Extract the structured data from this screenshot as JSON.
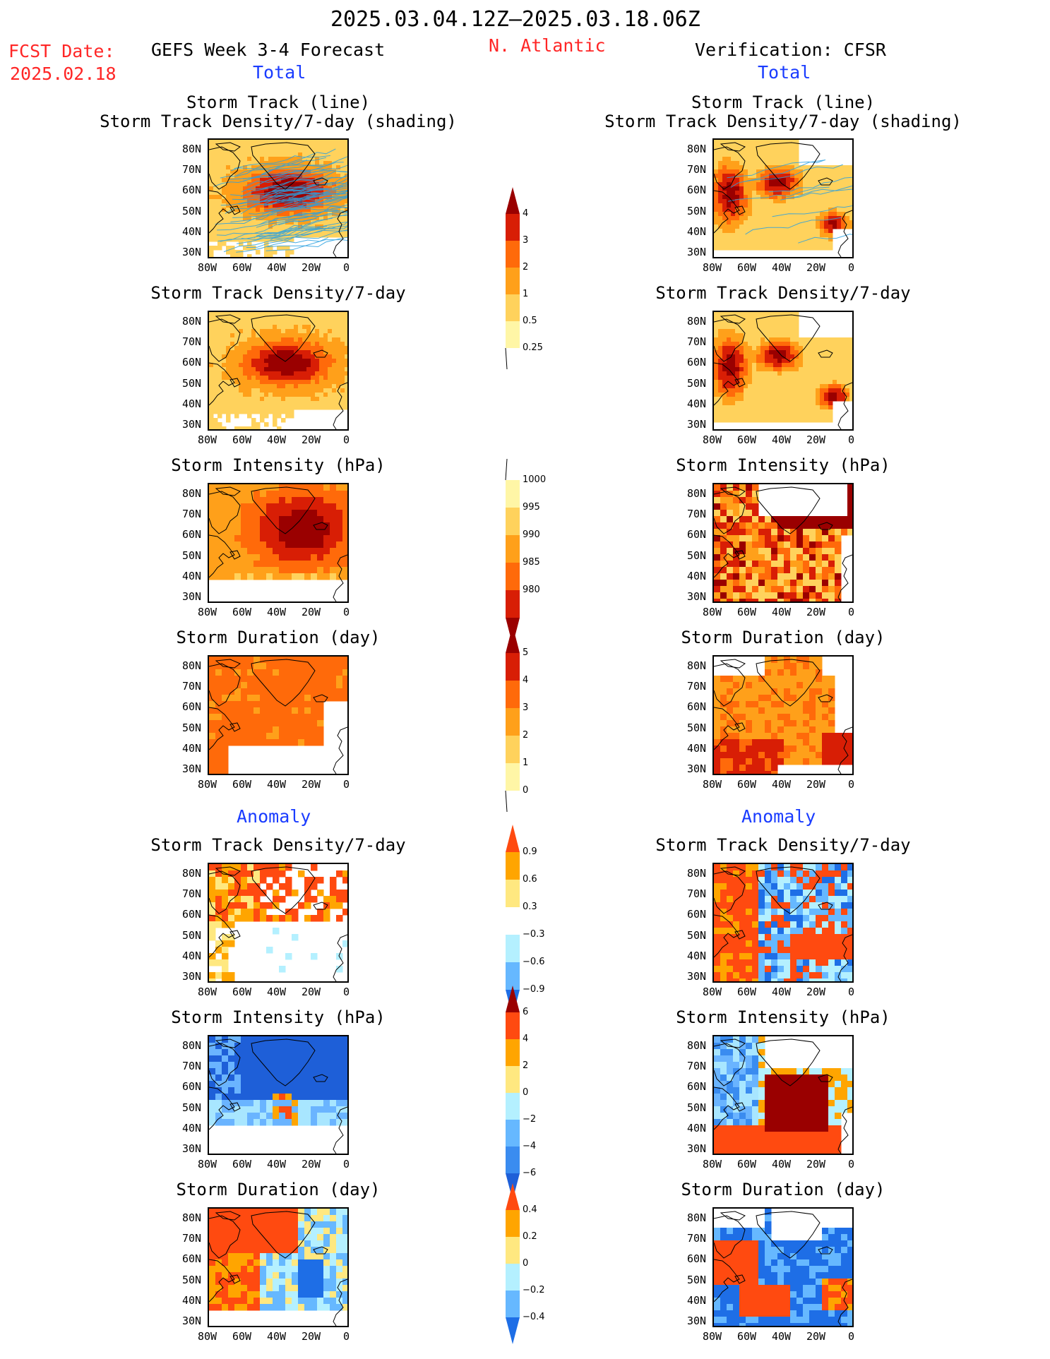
{
  "header": {
    "date_range": "2025.03.04.12Z–2025.03.18.06Z",
    "fcst_label": "FCST Date:",
    "fcst_date": "2025.02.18",
    "model": "GEFS Week 3-4 Forecast",
    "region": "N. Atlantic",
    "verification": "Verification: CFSR"
  },
  "sections": {
    "total": "Total",
    "anomaly": "Anomaly"
  },
  "panel_titles": {
    "track_line": "Storm Track (line)",
    "track_shading": "Storm Track Density/7-day (shading)",
    "density": "Storm Track Density/7-day",
    "intensity": "Storm Intensity (hPa)",
    "duration": "Storm Duration (day)"
  },
  "axes": {
    "lat_ticks": [
      "80N",
      "70N",
      "60N",
      "50N",
      "40N",
      "30N"
    ],
    "lon_ticks": [
      "80W",
      "60W",
      "40W",
      "20W",
      "0"
    ]
  },
  "colorbars": {
    "density_total": [
      "4",
      "3",
      "2",
      "1",
      "0.5",
      "0.25"
    ],
    "intensity_total": [
      "1000",
      "995",
      "990",
      "985",
      "980"
    ],
    "duration_total": [
      "5",
      "4",
      "3",
      "2",
      "1",
      "0"
    ],
    "density_anomaly": [
      "0.9",
      "0.6",
      "0.3",
      "−0.3",
      "−0.6",
      "−0.9"
    ],
    "intensity_anomaly": [
      "6",
      "4",
      "2",
      "0",
      "−2",
      "−4",
      "−6"
    ],
    "duration_anomaly": [
      "0.4",
      "0.2",
      "0",
      "−0.2",
      "−0.4"
    ]
  },
  "colors": {
    "warm_scale": [
      "#fff6a6",
      "#ffd25c",
      "#ffa01a",
      "#ff6a0a",
      "#d81e05",
      "#9a0000"
    ],
    "anomaly_positive": [
      "#ffe880",
      "#ffa500",
      "#ff4a10"
    ],
    "anomaly_negative": [
      "#b4f0ff",
      "#66b8ff",
      "#1e6ee6"
    ],
    "intensity_anomaly_negative": [
      "#a8e6ff",
      "#6ab4ff",
      "#3a8cf0",
      "#1e5fd8"
    ],
    "track_line": "#2aa0e0"
  }
}
